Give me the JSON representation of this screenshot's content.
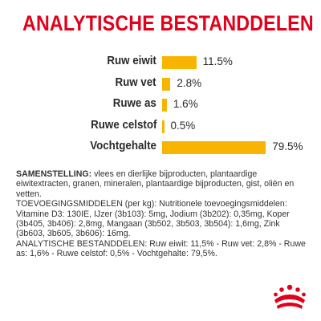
{
  "title": "ANALYTISCHE BESTANDDELEN",
  "colors": {
    "title": "#e2001a",
    "bar": "#f7b400",
    "text": "#2a2a2a",
    "logo": "#e2001a"
  },
  "analytics": [
    {
      "label": "Ruw eiwit",
      "value_text": "11.5%",
      "value": 11.5
    },
    {
      "label": "Ruw vet",
      "value_text": "2.8%",
      "value": 2.8
    },
    {
      "label": "Ruwe as",
      "value_text": "1.6%",
      "value": 1.6
    },
    {
      "label": "Ruwe celstof",
      "value_text": "0.5%",
      "value": 0.5
    },
    {
      "label": "Vochtgehalte",
      "value_text": "79.5%",
      "value": 79.5
    }
  ],
  "composition": {
    "samenstelling_key": "SAMENSTELLING:",
    "samenstelling_text": " vlees en dierlijke bijproducten, plantaardige eiwitextracten, granen, mineralen, plantaardige bijproducten, gist, oliën en vetten.",
    "toevoegingsmiddelen_text": "TOEVOEGINGSMIDDELEN (per kg): Nutritionele toevoegingsmiddelen: Vitamine D3: 130IE, IJzer (3b103): 5mg, Jodium (3b202): 0,35mg, Koper (3b405, 3b406): 2,8mg, Mangaan (3b502, 3b503, 3b504): 1,6mg, Zink (3b603, 3b605, 3b606): 16mg.",
    "analytische_text": "ANALYTISCHE BESTANDDELEN: Ruw eiwit: 11,5% - Ruw vet: 2,8% - Ruwe as: 1,6% - Ruwe celstof: 0,5% - Vochtgehalte: 79,5%."
  },
  "logo_icon": "royal-canin-crown-logo"
}
